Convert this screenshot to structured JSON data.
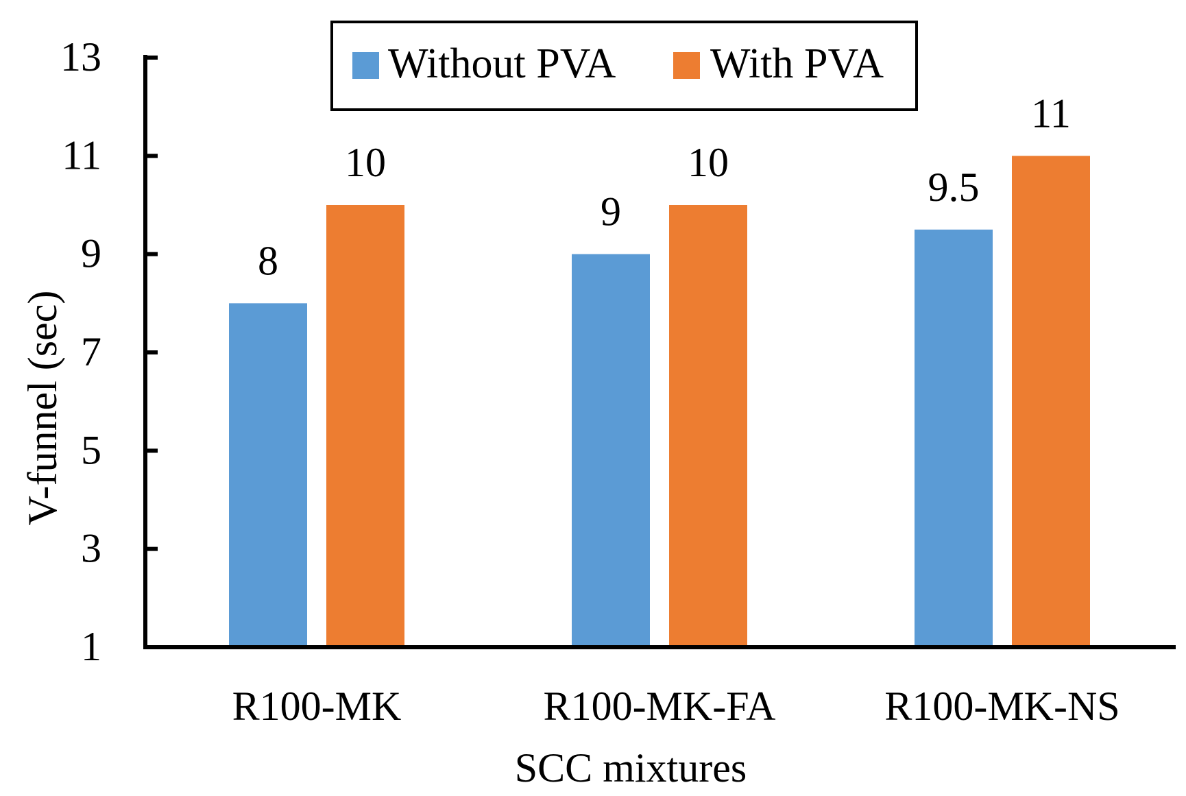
{
  "chart_data": {
    "type": "bar",
    "categories": [
      "R100-MK",
      "R100-MK-FA",
      "R100-MK-NS"
    ],
    "series": [
      {
        "name": "Without PVA",
        "color": "#5B9BD5",
        "values": [
          8,
          9,
          9.5
        ],
        "labels": [
          "8",
          "9",
          "9.5"
        ]
      },
      {
        "name": "With PVA",
        "color": "#ED7D31",
        "values": [
          10,
          10,
          11
        ],
        "labels": [
          "10",
          "10",
          "11"
        ]
      }
    ],
    "title": "",
    "xlabel": "SCC mixtures",
    "ylabel": "V-funnel (sec)",
    "ylim": [
      1,
      13
    ],
    "yticks": [
      "1",
      "3",
      "5",
      "7",
      "9",
      "11",
      "13"
    ],
    "grid": false,
    "legend_position": "top-center"
  }
}
